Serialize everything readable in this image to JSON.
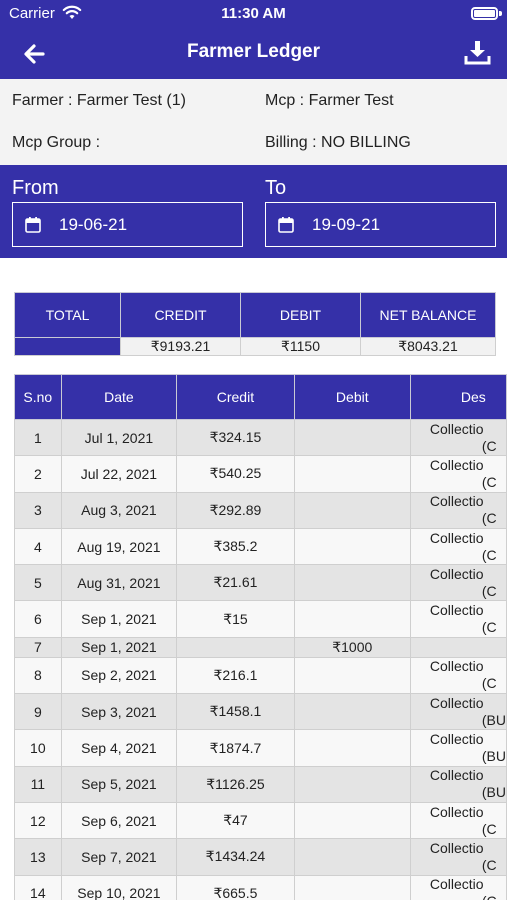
{
  "status_bar": {
    "carrier": "Carrier",
    "time": "11:30 AM"
  },
  "header": {
    "title": "Farmer Ledger"
  },
  "info": {
    "farmer": "Farmer : Farmer Test (1)",
    "mcp": "Mcp : Farmer Test",
    "mcp_group": "Mcp Group :",
    "billing": "Billing : NO BILLING"
  },
  "dates": {
    "from_label": "From",
    "from_value": "19-06-21",
    "to_label": "To",
    "to_value": "19-09-21"
  },
  "summary": {
    "headers": [
      "TOTAL",
      "CREDIT",
      "DEBIT",
      "NET BALANCE"
    ],
    "credit": "₹9193.21",
    "debit": "₹1150",
    "net_balance": "₹8043.21"
  },
  "ledger": {
    "headers": [
      "S.no",
      "Date",
      "Credit",
      "Debit",
      "Des"
    ],
    "rows": [
      {
        "sno": "1",
        "date": "Jul 1, 2021",
        "credit": "₹324.15",
        "debit": "",
        "desc1": "Collectio",
        "desc2": "(C"
      },
      {
        "sno": "2",
        "date": "Jul 22, 2021",
        "credit": "₹540.25",
        "debit": "",
        "desc1": "Collectio",
        "desc2": "(C"
      },
      {
        "sno": "3",
        "date": "Aug 3, 2021",
        "credit": "₹292.89",
        "debit": "",
        "desc1": "Collectio",
        "desc2": "(C"
      },
      {
        "sno": "4",
        "date": "Aug 19, 2021",
        "credit": "₹385.2",
        "debit": "",
        "desc1": "Collectio",
        "desc2": "(C"
      },
      {
        "sno": "5",
        "date": "Aug 31, 2021",
        "credit": "₹21.61",
        "debit": "",
        "desc1": "Collectio",
        "desc2": "(C"
      },
      {
        "sno": "6",
        "date": "Sep 1, 2021",
        "credit": "₹15",
        "debit": "",
        "desc1": "Collectio",
        "desc2": "(C"
      },
      {
        "sno": "7",
        "date": "Sep 1, 2021",
        "credit": "",
        "debit": "₹1000",
        "desc1": "",
        "desc2": ""
      },
      {
        "sno": "8",
        "date": "Sep 2, 2021",
        "credit": "₹216.1",
        "debit": "",
        "desc1": "Collectio",
        "desc2": "(C"
      },
      {
        "sno": "9",
        "date": "Sep 3, 2021",
        "credit": "₹1458.1",
        "debit": "",
        "desc1": "Collectio",
        "desc2": "(BU"
      },
      {
        "sno": "10",
        "date": "Sep 4, 2021",
        "credit": "₹1874.7",
        "debit": "",
        "desc1": "Collectio",
        "desc2": "(BU"
      },
      {
        "sno": "11",
        "date": "Sep 5, 2021",
        "credit": "₹1126.25",
        "debit": "",
        "desc1": "Collectio",
        "desc2": "(BU"
      },
      {
        "sno": "12",
        "date": "Sep 6, 2021",
        "credit": "₹47",
        "debit": "",
        "desc1": "Collectio",
        "desc2": "(C"
      },
      {
        "sno": "13",
        "date": "Sep 7, 2021",
        "credit": "₹1434.24",
        "debit": "",
        "desc1": "Collectio",
        "desc2": "(C"
      },
      {
        "sno": "14",
        "date": "Sep 10, 2021",
        "credit": "₹665.5",
        "debit": "",
        "desc1": "Collectio",
        "desc2": "(C"
      }
    ]
  },
  "icons": {
    "back": "arrow-left-icon",
    "download": "download-icon",
    "calendar": "calendar-icon",
    "wifi": "wifi-icon",
    "battery": "battery-icon"
  },
  "colors": {
    "primary": "#3530a8",
    "info_bg": "#f3f3f3",
    "row_odd": "#e4e4e4",
    "row_even": "#f8f8f8"
  }
}
